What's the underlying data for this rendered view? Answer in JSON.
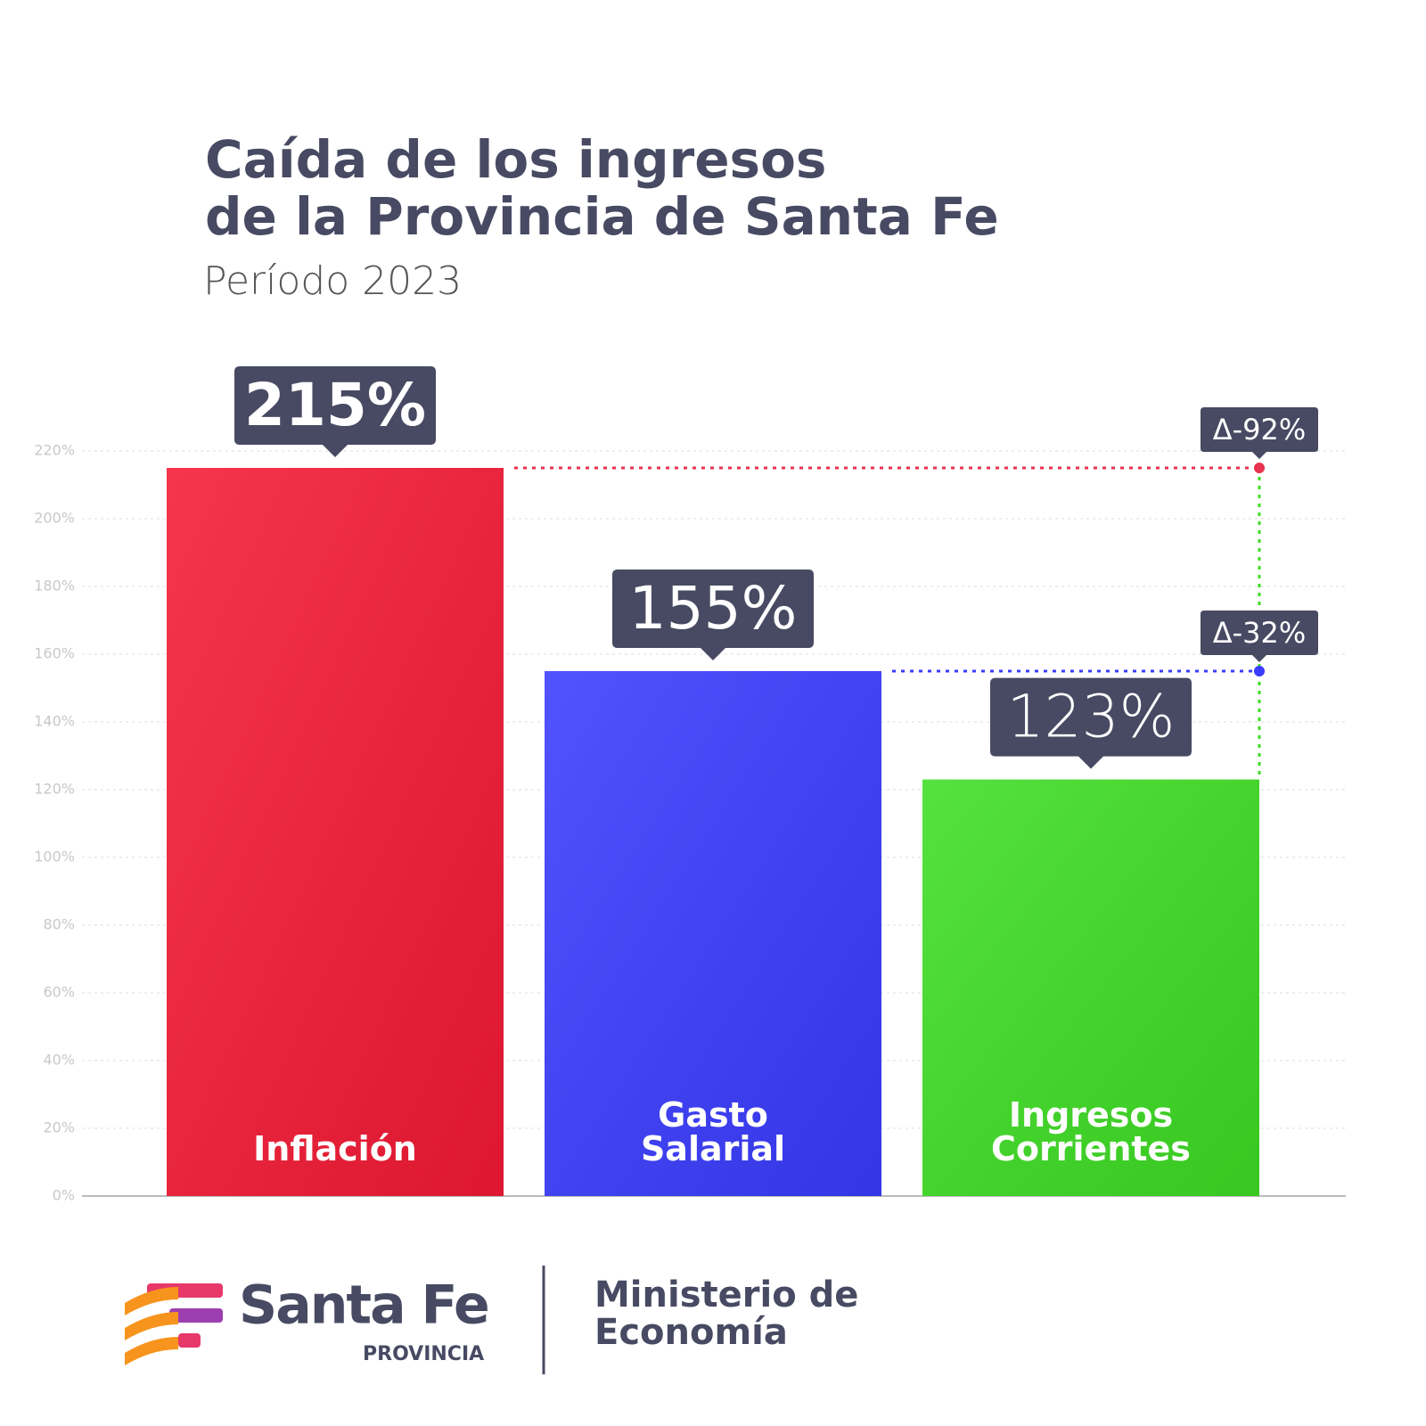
{
  "chart_data": {
    "type": "bar",
    "title": [
      "Caída de los ingresos",
      "de la Provincia de Santa Fe"
    ],
    "subtitle": "Período 2023",
    "categories": [
      "Inflación",
      "Gasto Salarial",
      "Ingresos Corrientes"
    ],
    "values": [
      215,
      155,
      123
    ],
    "value_labels": [
      "215%",
      "155%",
      "123%"
    ],
    "colors": [
      "#f51a35",
      "#3a3cff",
      "#3ede24"
    ],
    "ylim": [
      0,
      220
    ],
    "yticks": [
      {
        "value": 0,
        "label": "0%"
      },
      {
        "value": 20,
        "label": "20%"
      },
      {
        "value": 40,
        "label": "40%"
      },
      {
        "value": 60,
        "label": "60%"
      },
      {
        "value": 80,
        "label": "80%"
      },
      {
        "value": 100,
        "label": "100%"
      },
      {
        "value": 120,
        "label": "120%"
      },
      {
        "value": 140,
        "label": "140%"
      },
      {
        "value": 160,
        "label": "160%"
      },
      {
        "value": 180,
        "label": "180%"
      },
      {
        "value": 200,
        "label": "200%"
      },
      {
        "value": 220,
        "label": "220%"
      }
    ],
    "grid": true,
    "annotations": [
      "Δ-92%",
      "Δ-32%"
    ]
  },
  "footer": {
    "brand": "Santa Fe",
    "brand_sub": "PROVINCIA",
    "ministry": [
      "Ministerio de",
      "Economía"
    ]
  }
}
